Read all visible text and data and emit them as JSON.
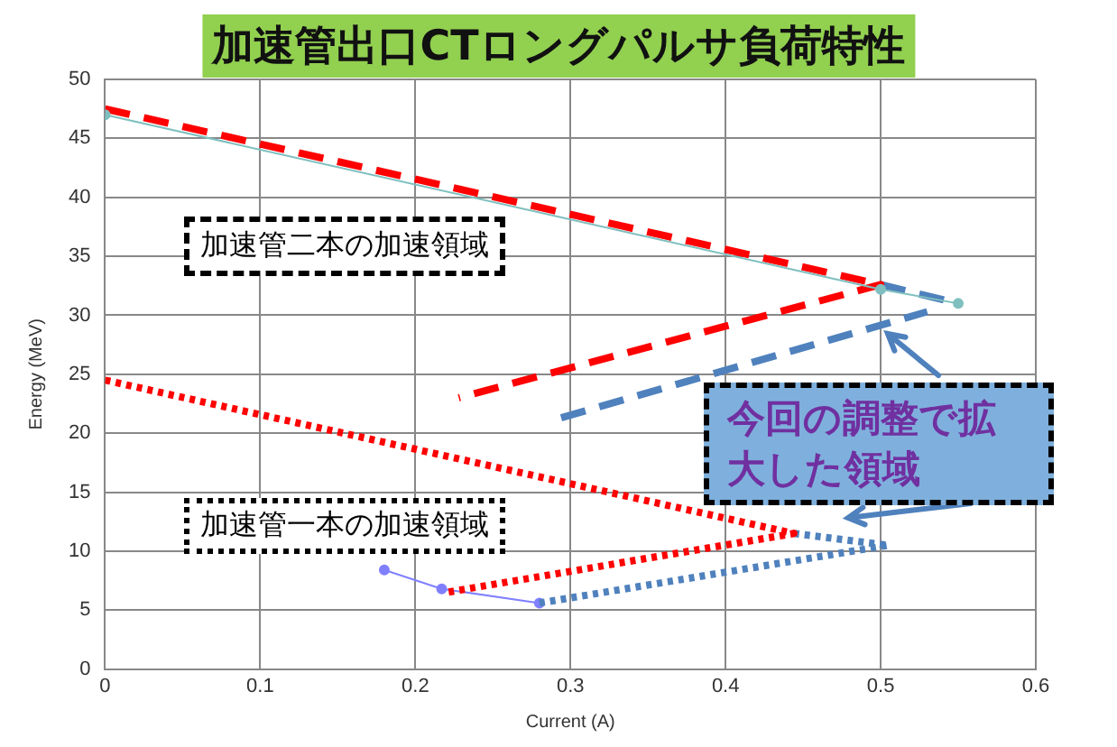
{
  "chart_data": {
    "type": "line",
    "title": "加速管出口CTロングパルサ負荷特性",
    "xlabel": "Current (A)",
    "ylabel": "Energy (MeV)",
    "xlim": [
      0,
      0.6
    ],
    "xticks": [
      0,
      0.1,
      0.2,
      0.3,
      0.4,
      0.5,
      0.6
    ],
    "ylim": [
      0,
      50
    ],
    "yticks": [
      0,
      5,
      10,
      15,
      20,
      25,
      30,
      35,
      40,
      45,
      50
    ],
    "grid": true,
    "legend": false,
    "series": [
      {
        "color": "#7fbfbf",
        "x": [
          0,
          0.5,
          0.55
        ],
        "values": [
          47,
          32.2,
          31
        ],
        "marker": "circle",
        "line_style": "solid"
      },
      {
        "color": "#ff0000",
        "x": [
          0,
          0.5,
          0.228
        ],
        "values": [
          47.5,
          32.6,
          23
        ],
        "marker": "none",
        "line_style": "dashed"
      },
      {
        "color": "#4f81bd",
        "x": [
          0.5,
          0.55
        ],
        "values": [
          32.6,
          31
        ],
        "marker": "none",
        "line_style": "dashed"
      },
      {
        "color": "#4f81bd",
        "x": [
          0.294,
          0.53
        ],
        "values": [
          21.3,
          30.3
        ],
        "marker": "none",
        "line_style": "dashed"
      },
      {
        "color": "#ff0000",
        "x": [
          0,
          0.444,
          0.22
        ],
        "values": [
          24.5,
          11.5,
          6.5
        ],
        "marker": "none",
        "line_style": "dotted"
      },
      {
        "color": "#4f81bd",
        "x": [
          0.444,
          0.505
        ],
        "values": [
          11.5,
          10.5
        ],
        "marker": "none",
        "line_style": "dotted"
      },
      {
        "color": "#4f81bd",
        "x": [
          0.28,
          0.505
        ],
        "values": [
          5.6,
          10.5
        ],
        "marker": "none",
        "line_style": "dotted"
      },
      {
        "color": "#8080ff",
        "x": [
          0.18,
          0.217,
          0.28
        ],
        "values": [
          8.4,
          6.8,
          5.6
        ],
        "marker": "circle",
        "line_style": "solid"
      }
    ],
    "annotations": [
      "加速管二本の加速領域",
      "加速管一本の加速領域",
      "今回の調整で拡大した領域"
    ]
  }
}
